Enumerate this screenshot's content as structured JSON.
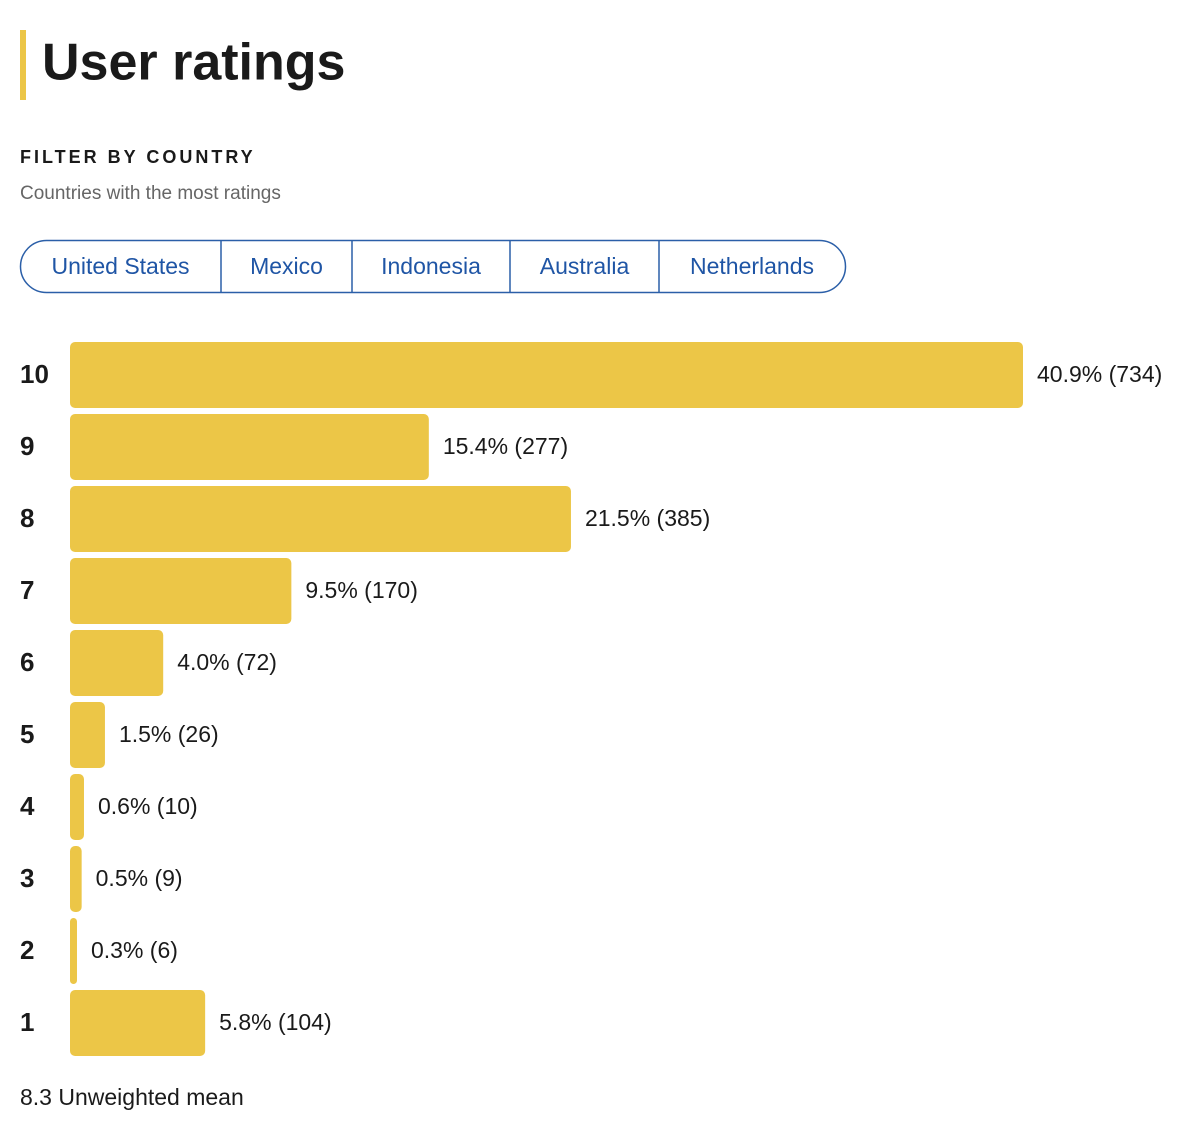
{
  "header": {
    "title": "User ratings"
  },
  "filter": {
    "label": "FILTER BY COUNTRY",
    "subtitle": "Countries with the most ratings",
    "countries": [
      "United States",
      "Mexico",
      "Indonesia",
      "Australia",
      "Netherlands"
    ]
  },
  "chart_data": {
    "type": "bar",
    "orientation": "horizontal",
    "categories": [
      "10",
      "9",
      "8",
      "7",
      "6",
      "5",
      "4",
      "3",
      "2",
      "1"
    ],
    "values": [
      40.9,
      15.4,
      21.5,
      9.5,
      4.0,
      1.5,
      0.6,
      0.5,
      0.3,
      5.8
    ],
    "value_labels": [
      "40.9% (734)",
      "15.4% (277)",
      "21.5% (385)",
      "9.5% (170)",
      "4.0% (72)",
      "1.5% (26)",
      "0.6% (10)",
      "0.5% (9)",
      "0.3% (6)",
      "5.8% (104)"
    ],
    "color": "#ecc647"
  },
  "footer": "8.3 Unweighted mean"
}
